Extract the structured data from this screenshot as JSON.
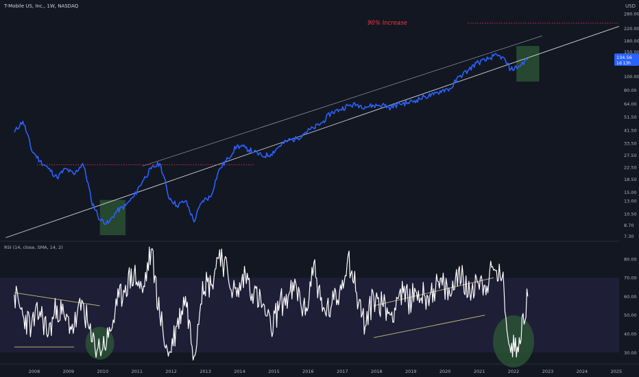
{
  "header": {
    "symbol_title": "T-Mobile US, Inc., 1W, NASDAQ",
    "currency": "USD"
  },
  "colors": {
    "background": "#131722",
    "price_line": "#2962ff",
    "rsi_line": "#ffffff",
    "rsi_band": "#2a2448",
    "channel_line": "#d1d4dc",
    "trend_yellow": "#c8c27a",
    "marker_green": "#2e5a36",
    "marker_red": "#f23645",
    "axis_text": "#b2b5be",
    "separator": "#2a2e39"
  },
  "price_axis": {
    "ticks": [
      "280.00",
      "220.00",
      "180.00",
      "150.00",
      "100.00",
      "80.00",
      "64.00",
      "51.50",
      "41.50",
      "33.50",
      "27.50",
      "22.50",
      "18.50",
      "15.00",
      "13.00",
      "10.50",
      "8.70",
      "7.30"
    ],
    "last_price": "134.56",
    "countdown": "1d 13h"
  },
  "rsi_axis": {
    "ticks": [
      "80.00",
      "70.00",
      "60.00",
      "50.00",
      "40.00",
      "30.00"
    ]
  },
  "rsi_title": "RSI (14, close, SMA, 14, 2)",
  "time_axis": {
    "ticks": [
      "2008",
      "2009",
      "2010",
      "2011",
      "2012",
      "2013",
      "2014",
      "2015",
      "2016",
      "2017",
      "2018",
      "2019",
      "2020",
      "2021",
      "2022",
      "2023",
      "2024",
      "2025"
    ]
  },
  "annotation": {
    "text": "90% Increase"
  },
  "chart_data": [
    {
      "type": "line",
      "series": [
        {
          "x": [
            "2007-06",
            "2007-09",
            "2007-12",
            "2008-03",
            "2008-06",
            "2008-09",
            "2008-12",
            "2009-03",
            "2009-06",
            "2009-09",
            "2009-12",
            "2010-03",
            "2010-06",
            "2010-09",
            "2010-12",
            "2011-03",
            "2011-06",
            "2011-09",
            "2011-12",
            "2012-03",
            "2012-06",
            "2012-09",
            "2012-12",
            "2013-03",
            "2013-06",
            "2013-09",
            "2013-12",
            "2014-03",
            "2014-06",
            "2014-09",
            "2014-12",
            "2015-03",
            "2015-06",
            "2015-09",
            "2015-12",
            "2016-03",
            "2016-06",
            "2016-09",
            "2016-12",
            "2017-03",
            "2017-06",
            "2017-09",
            "2017-12",
            "2018-03",
            "2018-06",
            "2018-09",
            "2018-12",
            "2019-03",
            "2019-06",
            "2019-09",
            "2019-12",
            "2020-03",
            "2020-06",
            "2020-09",
            "2020-12",
            "2021-03",
            "2021-06",
            "2021-09",
            "2021-12",
            "2022-03",
            "2022-06"
          ],
          "y": [
            40,
            48,
            30,
            25,
            22,
            19,
            22,
            20,
            24,
            13,
            9.5,
            9.0,
            11,
            12,
            14,
            18,
            22,
            24,
            14,
            12,
            13,
            9.2,
            13,
            14,
            22,
            26,
            32,
            31,
            29,
            27,
            28,
            32,
            35,
            36,
            40,
            43,
            47,
            55,
            58,
            62,
            63,
            61,
            62,
            63,
            60,
            64,
            65,
            68,
            72,
            74,
            80,
            82,
            100,
            110,
            125,
            130,
            140,
            138,
            112,
            118,
            134.56
          ]
        }
      ],
      "yscale": "log",
      "ylim": [
        7.0,
        300
      ],
      "xlim": [
        "2007-01",
        "2025-02"
      ],
      "grid": false,
      "legend": "none"
    },
    {
      "type": "line",
      "series": [
        {
          "x": [
            "2007-06",
            "2007-09",
            "2007-12",
            "2008-03",
            "2008-06",
            "2008-09",
            "2008-12",
            "2009-03",
            "2009-06",
            "2009-09",
            "2009-12",
            "2010-03",
            "2010-06",
            "2010-09",
            "2010-12",
            "2011-03",
            "2011-06",
            "2011-09",
            "2011-12",
            "2012-03",
            "2012-06",
            "2012-09",
            "2012-12",
            "2013-03",
            "2013-06",
            "2013-09",
            "2013-12",
            "2014-03",
            "2014-06",
            "2014-09",
            "2014-12",
            "2015-03",
            "2015-06",
            "2015-09",
            "2015-12",
            "2016-03",
            "2016-06",
            "2016-09",
            "2016-12",
            "2017-03",
            "2017-06",
            "2017-09",
            "2017-12",
            "2018-03",
            "2018-06",
            "2018-09",
            "2018-12",
            "2019-03",
            "2019-06",
            "2019-09",
            "2019-12",
            "2020-03",
            "2020-06",
            "2020-09",
            "2020-12",
            "2021-03",
            "2021-06",
            "2021-09",
            "2021-12",
            "2022-03",
            "2022-06"
          ],
          "y": [
            61,
            50,
            44,
            52,
            40,
            55,
            47,
            44,
            57,
            36,
            32,
            38,
            55,
            66,
            72,
            62,
            85,
            50,
            28,
            44,
            60,
            28,
            68,
            66,
            85,
            70,
            60,
            72,
            62,
            55,
            42,
            56,
            60,
            64,
            50,
            78,
            52,
            54,
            62,
            82,
            62,
            44,
            60,
            56,
            50,
            62,
            58,
            62,
            60,
            64,
            66,
            60,
            76,
            60,
            70,
            66,
            74,
            70,
            30,
            38,
            60
          ]
        }
      ],
      "ylim": [
        25,
        88
      ],
      "bands": [
        30,
        70
      ],
      "xlim": [
        "2007-01",
        "2025-02"
      ],
      "grid": false,
      "legend": "none"
    }
  ]
}
